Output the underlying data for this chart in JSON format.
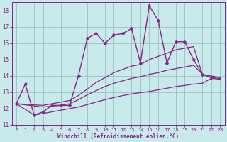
{
  "background_color": "#c8eaea",
  "grid_color": "#9bbfbf",
  "line_color": "#882288",
  "marker_color": "#882288",
  "xlabel": "Windchill (Refroidissement éolien,°C)",
  "xlabel_color": "#882288",
  "tick_color": "#882288",
  "xlim": [
    -0.5,
    23.5
  ],
  "ylim": [
    11,
    18.5
  ],
  "yticks": [
    11,
    12,
    13,
    14,
    15,
    16,
    17,
    18
  ],
  "xticks": [
    0,
    1,
    2,
    3,
    4,
    5,
    6,
    7,
    8,
    9,
    10,
    11,
    12,
    13,
    14,
    15,
    16,
    17,
    18,
    19,
    20,
    21,
    22,
    23
  ],
  "series": [
    {
      "x": [
        0,
        1,
        2,
        3,
        4,
        5,
        6,
        7,
        8,
        9,
        10,
        11,
        12,
        13,
        14,
        15,
        16,
        17,
        18,
        19,
        20,
        21,
        22
      ],
      "y": [
        12.3,
        13.5,
        11.6,
        11.8,
        12.2,
        12.2,
        12.2,
        14.0,
        16.3,
        16.6,
        16.0,
        16.5,
        16.6,
        16.9,
        14.8,
        18.3,
        17.4,
        14.8,
        16.1,
        16.1,
        15.0,
        14.1,
        13.9
      ],
      "has_markers": true,
      "markersize": 2.5,
      "linewidth": 1.0
    },
    {
      "x": [
        0,
        3,
        4,
        5,
        6,
        7,
        8,
        9,
        10,
        11,
        12,
        13,
        14,
        15,
        16,
        17,
        18,
        19,
        20,
        21,
        22,
        23
      ],
      "y": [
        12.3,
        12.2,
        12.3,
        12.4,
        12.5,
        12.8,
        13.2,
        13.6,
        13.9,
        14.2,
        14.4,
        14.6,
        14.7,
        15.0,
        15.2,
        15.4,
        15.6,
        15.7,
        15.8,
        14.1,
        14.0,
        13.9
      ],
      "has_markers": false,
      "markersize": 0,
      "linewidth": 0.9
    },
    {
      "x": [
        0,
        3,
        4,
        5,
        6,
        7,
        8,
        9,
        10,
        11,
        12,
        13,
        14,
        15,
        16,
        17,
        18,
        19,
        20,
        21,
        22,
        23
      ],
      "y": [
        12.3,
        12.1,
        12.15,
        12.2,
        12.3,
        12.55,
        12.85,
        13.1,
        13.35,
        13.55,
        13.7,
        13.85,
        13.95,
        14.1,
        14.2,
        14.35,
        14.45,
        14.55,
        14.65,
        14.1,
        13.9,
        13.85
      ],
      "has_markers": false,
      "markersize": 0,
      "linewidth": 0.9
    },
    {
      "x": [
        0,
        2,
        3,
        4,
        5,
        6,
        7,
        8,
        9,
        10,
        11,
        12,
        13,
        14,
        15,
        16,
        17,
        18,
        19,
        20,
        21,
        22,
        23
      ],
      "y": [
        12.3,
        11.6,
        11.7,
        11.8,
        11.9,
        12.0,
        12.1,
        12.25,
        12.4,
        12.55,
        12.68,
        12.8,
        12.9,
        12.98,
        13.05,
        13.15,
        13.25,
        13.35,
        13.42,
        13.5,
        13.55,
        13.85,
        13.8
      ],
      "has_markers": false,
      "markersize": 0,
      "linewidth": 0.9
    }
  ],
  "figsize": [
    3.2,
    2.0
  ],
  "dpi": 100
}
